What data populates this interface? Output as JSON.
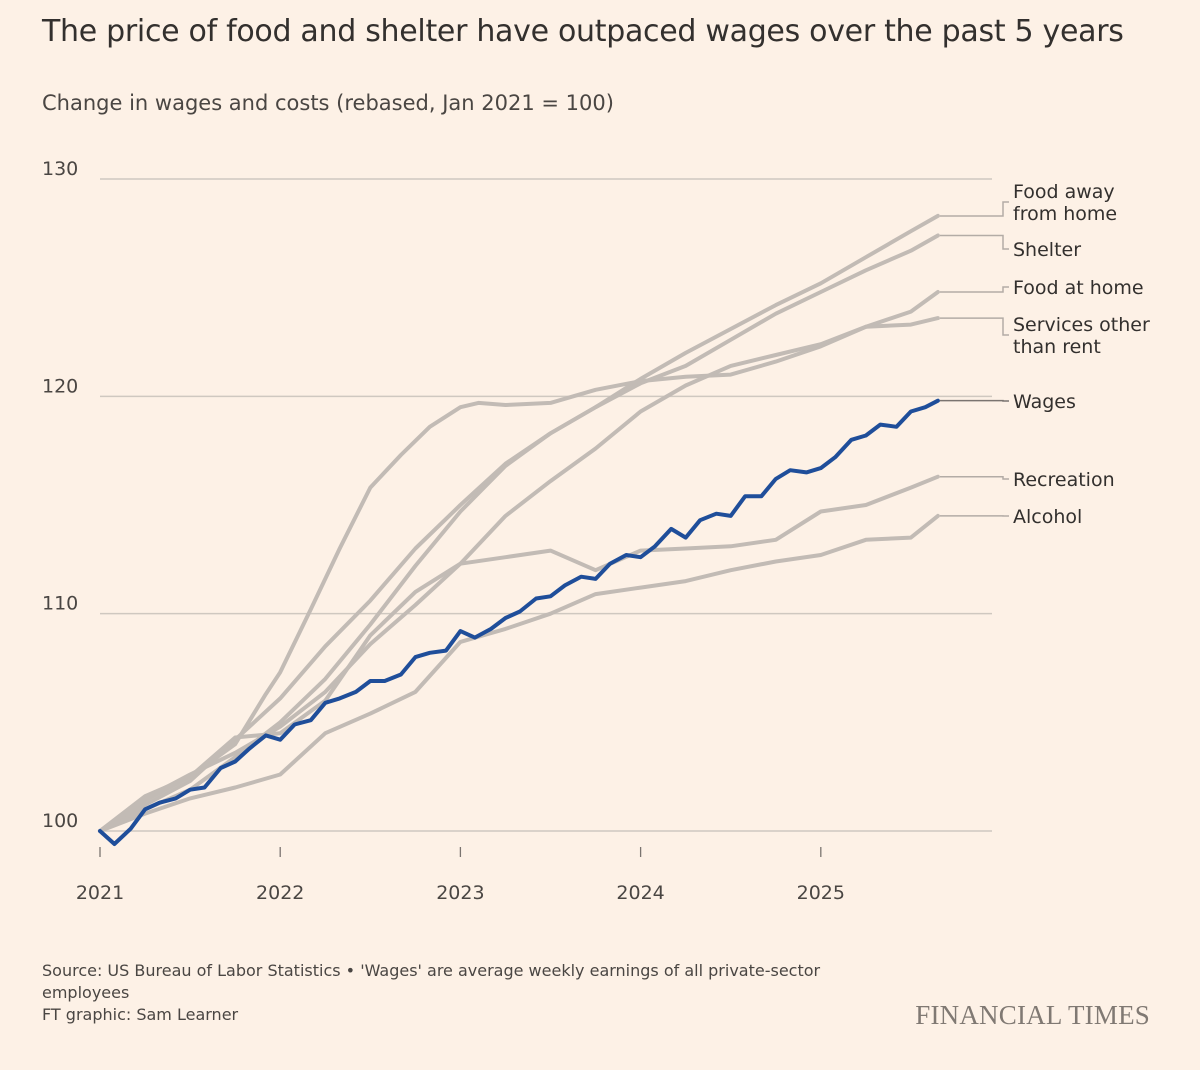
{
  "header": {
    "title": "The price of food and shelter have outpaced wages over the past 5 years",
    "subtitle": "Change in wages and costs (rebased, Jan 2021 = 100)"
  },
  "footer": {
    "source": "Source: US Bureau of Labor Statistics • 'Wages' are average weekly earnings of all private-sector employees",
    "credit": "FT graphic: Sam Learner",
    "logo": "FINANCIAL TIMES"
  },
  "colors": {
    "background": "#fdf1e6",
    "grid": "#cfc8c0",
    "series_grey": "#c2bbb5",
    "wages": "#1f4e9a"
  },
  "chart_data": {
    "type": "line",
    "ylim": [
      98,
      131
    ],
    "xlim": [
      2021.0,
      2025.95
    ],
    "yticks": [
      100,
      110,
      120,
      130
    ],
    "xticks": [
      "2021",
      "2022",
      "2023",
      "2024",
      "2025"
    ],
    "grid": true,
    "legend": "direct labels at right end of lines",
    "series": [
      {
        "name": "Food away from home",
        "highlight": false,
        "label_lines": [
          "Food away",
          "from home"
        ],
        "points": [
          [
            2021.0,
            100
          ],
          [
            2021.25,
            101.2
          ],
          [
            2021.5,
            102.3
          ],
          [
            2021.75,
            104.2
          ],
          [
            2022.0,
            106.1
          ],
          [
            2022.25,
            108.5
          ],
          [
            2022.5,
            110.6
          ],
          [
            2022.75,
            113.0
          ],
          [
            2023.0,
            115.0
          ],
          [
            2023.25,
            116.9
          ],
          [
            2023.5,
            118.3
          ],
          [
            2023.75,
            119.5
          ],
          [
            2024.0,
            120.8
          ],
          [
            2024.25,
            122.0
          ],
          [
            2024.5,
            123.1
          ],
          [
            2024.75,
            124.2
          ],
          [
            2025.0,
            125.2
          ],
          [
            2025.25,
            126.4
          ],
          [
            2025.5,
            127.6
          ],
          [
            2025.65,
            128.3
          ]
        ]
      },
      {
        "name": "Shelter",
        "highlight": false,
        "label_lines": [
          "Shelter"
        ],
        "points": [
          [
            2021.0,
            100
          ],
          [
            2021.25,
            101.0
          ],
          [
            2021.5,
            101.9
          ],
          [
            2021.75,
            103.4
          ],
          [
            2022.0,
            105.0
          ],
          [
            2022.25,
            107.0
          ],
          [
            2022.5,
            109.5
          ],
          [
            2022.75,
            112.2
          ],
          [
            2023.0,
            114.7
          ],
          [
            2023.25,
            116.8
          ],
          [
            2023.5,
            118.3
          ],
          [
            2023.75,
            119.5
          ],
          [
            2024.0,
            120.6
          ],
          [
            2024.25,
            121.4
          ],
          [
            2024.5,
            122.6
          ],
          [
            2024.75,
            123.8
          ],
          [
            2025.0,
            124.8
          ],
          [
            2025.25,
            125.8
          ],
          [
            2025.5,
            126.7
          ],
          [
            2025.65,
            127.4
          ]
        ]
      },
      {
        "name": "Food at home",
        "highlight": false,
        "label_lines": [
          "Food at home"
        ],
        "points": [
          [
            2021.0,
            100
          ],
          [
            2021.25,
            101.6
          ],
          [
            2021.5,
            102.5
          ],
          [
            2021.75,
            104.0
          ],
          [
            2021.92,
            106.3
          ],
          [
            2022.0,
            107.3
          ],
          [
            2022.17,
            110.2
          ],
          [
            2022.33,
            113.0
          ],
          [
            2022.5,
            115.8
          ],
          [
            2022.67,
            117.3
          ],
          [
            2022.83,
            118.6
          ],
          [
            2023.0,
            119.5
          ],
          [
            2023.1,
            119.7
          ],
          [
            2023.25,
            119.6
          ],
          [
            2023.5,
            119.7
          ],
          [
            2023.75,
            120.3
          ],
          [
            2024.0,
            120.7
          ],
          [
            2024.25,
            120.9
          ],
          [
            2024.5,
            121.0
          ],
          [
            2024.75,
            121.6
          ],
          [
            2025.0,
            122.3
          ],
          [
            2025.25,
            123.2
          ],
          [
            2025.5,
            123.9
          ],
          [
            2025.65,
            124.8
          ]
        ]
      },
      {
        "name": "Services other than rent",
        "highlight": false,
        "label_lines": [
          "Services other",
          "than rent"
        ],
        "points": [
          [
            2021.0,
            100
          ],
          [
            2021.25,
            101.5
          ],
          [
            2021.5,
            102.6
          ],
          [
            2021.75,
            103.6
          ],
          [
            2022.0,
            104.8
          ],
          [
            2022.25,
            106.4
          ],
          [
            2022.5,
            108.6
          ],
          [
            2022.75,
            110.4
          ],
          [
            2023.0,
            112.3
          ],
          [
            2023.25,
            114.5
          ],
          [
            2023.5,
            116.1
          ],
          [
            2023.75,
            117.6
          ],
          [
            2024.0,
            119.3
          ],
          [
            2024.25,
            120.5
          ],
          [
            2024.5,
            121.4
          ],
          [
            2024.75,
            121.9
          ],
          [
            2025.0,
            122.4
          ],
          [
            2025.25,
            123.2
          ],
          [
            2025.5,
            123.3
          ],
          [
            2025.65,
            123.6
          ]
        ]
      },
      {
        "name": "Recreation",
        "highlight": false,
        "label_lines": [
          "Recreation"
        ],
        "points": [
          [
            2021.0,
            100
          ],
          [
            2021.25,
            101.4
          ],
          [
            2021.5,
            102.5
          ],
          [
            2021.75,
            104.3
          ],
          [
            2022.0,
            104.5
          ],
          [
            2022.25,
            106.0
          ],
          [
            2022.5,
            109.0
          ],
          [
            2022.75,
            111.0
          ],
          [
            2023.0,
            112.3
          ],
          [
            2023.25,
            112.6
          ],
          [
            2023.5,
            112.9
          ],
          [
            2023.75,
            112.0
          ],
          [
            2024.0,
            112.9
          ],
          [
            2024.25,
            113.0
          ],
          [
            2024.5,
            113.1
          ],
          [
            2024.75,
            113.4
          ],
          [
            2025.0,
            114.7
          ],
          [
            2025.25,
            115.0
          ],
          [
            2025.5,
            115.8
          ],
          [
            2025.65,
            116.3
          ]
        ]
      },
      {
        "name": "Alcohol",
        "highlight": false,
        "label_lines": [
          "Alcohol"
        ],
        "points": [
          [
            2021.0,
            100
          ],
          [
            2021.25,
            100.8
          ],
          [
            2021.5,
            101.5
          ],
          [
            2021.75,
            102.0
          ],
          [
            2022.0,
            102.6
          ],
          [
            2022.25,
            104.5
          ],
          [
            2022.5,
            105.4
          ],
          [
            2022.75,
            106.4
          ],
          [
            2023.0,
            108.7
          ],
          [
            2023.25,
            109.3
          ],
          [
            2023.5,
            110.0
          ],
          [
            2023.75,
            110.9
          ],
          [
            2024.0,
            111.2
          ],
          [
            2024.25,
            111.5
          ],
          [
            2024.5,
            112.0
          ],
          [
            2024.75,
            112.4
          ],
          [
            2025.0,
            112.7
          ],
          [
            2025.25,
            113.4
          ],
          [
            2025.5,
            113.5
          ],
          [
            2025.65,
            114.5
          ]
        ]
      },
      {
        "name": "Wages",
        "highlight": true,
        "label_lines": [
          "Wages"
        ],
        "points": [
          [
            2021.0,
            100
          ],
          [
            2021.08,
            99.4
          ],
          [
            2021.17,
            100.1
          ],
          [
            2021.25,
            101.0
          ],
          [
            2021.33,
            101.3
          ],
          [
            2021.42,
            101.5
          ],
          [
            2021.5,
            101.9
          ],
          [
            2021.58,
            102.0
          ],
          [
            2021.67,
            102.9
          ],
          [
            2021.75,
            103.2
          ],
          [
            2021.83,
            103.8
          ],
          [
            2021.92,
            104.4
          ],
          [
            2022.0,
            104.2
          ],
          [
            2022.08,
            104.9
          ],
          [
            2022.17,
            105.1
          ],
          [
            2022.25,
            105.9
          ],
          [
            2022.33,
            106.1
          ],
          [
            2022.42,
            106.4
          ],
          [
            2022.5,
            106.9
          ],
          [
            2022.58,
            106.9
          ],
          [
            2022.67,
            107.2
          ],
          [
            2022.75,
            108.0
          ],
          [
            2022.83,
            108.2
          ],
          [
            2022.92,
            108.3
          ],
          [
            2023.0,
            109.2
          ],
          [
            2023.08,
            108.9
          ],
          [
            2023.17,
            109.3
          ],
          [
            2023.25,
            109.8
          ],
          [
            2023.33,
            110.1
          ],
          [
            2023.42,
            110.7
          ],
          [
            2023.5,
            110.8
          ],
          [
            2023.58,
            111.3
          ],
          [
            2023.67,
            111.7
          ],
          [
            2023.75,
            111.6
          ],
          [
            2023.83,
            112.3
          ],
          [
            2023.92,
            112.7
          ],
          [
            2024.0,
            112.6
          ],
          [
            2024.08,
            113.1
          ],
          [
            2024.17,
            113.9
          ],
          [
            2024.25,
            113.5
          ],
          [
            2024.33,
            114.3
          ],
          [
            2024.42,
            114.6
          ],
          [
            2024.5,
            114.5
          ],
          [
            2024.58,
            115.4
          ],
          [
            2024.67,
            115.4
          ],
          [
            2024.75,
            116.2
          ],
          [
            2024.83,
            116.6
          ],
          [
            2024.92,
            116.5
          ],
          [
            2025.0,
            116.7
          ],
          [
            2025.08,
            117.2
          ],
          [
            2025.17,
            118.0
          ],
          [
            2025.25,
            118.2
          ],
          [
            2025.33,
            118.7
          ],
          [
            2025.42,
            118.6
          ],
          [
            2025.5,
            119.3
          ],
          [
            2025.58,
            119.5
          ],
          [
            2025.65,
            119.8
          ]
        ]
      }
    ]
  }
}
